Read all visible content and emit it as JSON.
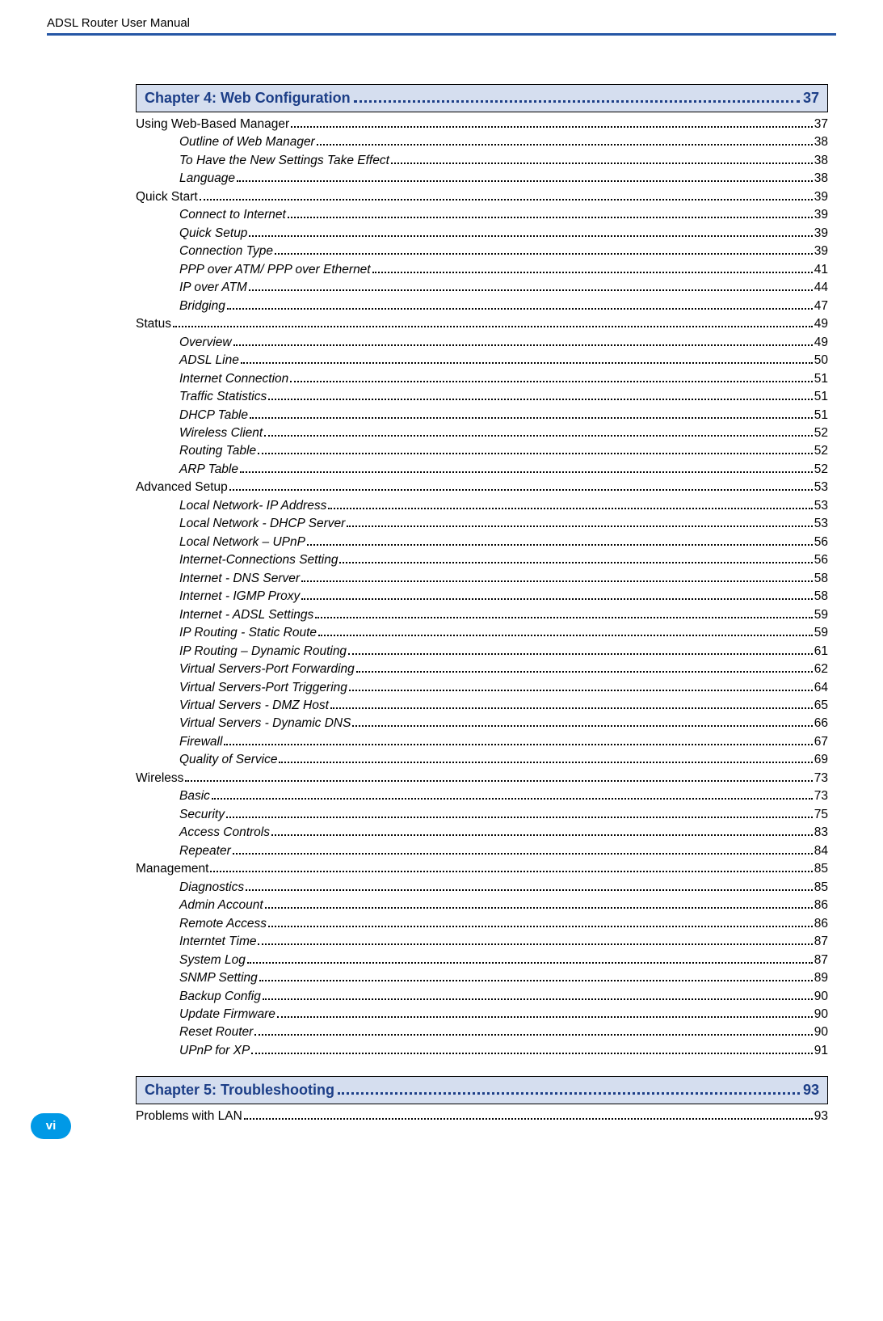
{
  "header": {
    "title": "ADSL Router User Manual"
  },
  "colors": {
    "rule": "#2657a5",
    "chapter_bg": "#d5deef",
    "chapter_text": "#1c3e87",
    "badge_bg": "#0099e6",
    "badge_text": "#ffffff",
    "body_text": "#000000"
  },
  "chapters": [
    {
      "title": "Chapter 4: Web Configuration",
      "page": "37",
      "toc": [
        {
          "level": 1,
          "label": "Using Web-Based Manager",
          "page": "37"
        },
        {
          "level": 2,
          "label": "Outline of Web Manager",
          "page": "38"
        },
        {
          "level": 2,
          "label": "To Have the New Settings Take Effect",
          "page": "38"
        },
        {
          "level": 2,
          "label": "Language",
          "page": "38"
        },
        {
          "level": 1,
          "label": "Quick Start",
          "page": "39"
        },
        {
          "level": 2,
          "label": "Connect to Internet",
          "page": "39"
        },
        {
          "level": 2,
          "label": "Quick Setup",
          "page": "39"
        },
        {
          "level": 2,
          "label": "Connection Type",
          "page": "39"
        },
        {
          "level": 2,
          "label": "PPP over ATM/ PPP over Ethernet",
          "page": "41"
        },
        {
          "level": 2,
          "label": "IP over ATM",
          "page": "44"
        },
        {
          "level": 2,
          "label": "Bridging",
          "page": "47"
        },
        {
          "level": 1,
          "label": "Status",
          "page": "49"
        },
        {
          "level": 2,
          "label": "Overview",
          "page": "49"
        },
        {
          "level": 2,
          "label": "ADSL Line",
          "page": "50"
        },
        {
          "level": 2,
          "label": "Internet Connection",
          "page": "51"
        },
        {
          "level": 2,
          "label": "Traffic Statistics",
          "page": "51"
        },
        {
          "level": 2,
          "label": "DHCP Table",
          "page": "51"
        },
        {
          "level": 2,
          "label": "Wireless Client",
          "page": "52"
        },
        {
          "level": 2,
          "label": "Routing Table",
          "page": "52"
        },
        {
          "level": 2,
          "label": "ARP Table",
          "page": "52"
        },
        {
          "level": 1,
          "label": "Advanced Setup",
          "page": "53"
        },
        {
          "level": 2,
          "label": "Local Network- IP Address",
          "page": "53"
        },
        {
          "level": 2,
          "label": "Local Network - DHCP Server",
          "page": "53"
        },
        {
          "level": 2,
          "label": "Local Network – UPnP",
          "page": "56"
        },
        {
          "level": 2,
          "label": "Internet-Connections Setting",
          "page": "56"
        },
        {
          "level": 2,
          "label": "Internet - DNS Server",
          "page": "58"
        },
        {
          "level": 2,
          "label": "Internet - IGMP Proxy",
          "page": "58"
        },
        {
          "level": 2,
          "label": "Internet - ADSL Settings",
          "page": "59"
        },
        {
          "level": 2,
          "label": "IP Routing - Static Route",
          "page": "59"
        },
        {
          "level": 2,
          "label": "IP Routing – Dynamic Routing",
          "page": "61"
        },
        {
          "level": 2,
          "label": "Virtual Servers-Port Forwarding",
          "page": "62"
        },
        {
          "level": 2,
          "label": "Virtual Servers-Port Triggering",
          "page": "64"
        },
        {
          "level": 2,
          "label": "Virtual Servers - DMZ Host",
          "page": "65"
        },
        {
          "level": 2,
          "label": "Virtual Servers - Dynamic DNS",
          "page": "66"
        },
        {
          "level": 2,
          "label": "Firewall",
          "page": "67"
        },
        {
          "level": 2,
          "label": "Quality of Service",
          "page": "69"
        },
        {
          "level": 1,
          "label": "Wireless",
          "page": "73"
        },
        {
          "level": 2,
          "label": "Basic",
          "page": "73"
        },
        {
          "level": 2,
          "label": "Security",
          "page": "75"
        },
        {
          "level": 2,
          "label": "Access Controls",
          "page": "83"
        },
        {
          "level": 2,
          "label": "Repeater",
          "page": "84"
        },
        {
          "level": 1,
          "label": "Management",
          "page": "85"
        },
        {
          "level": 2,
          "label": "Diagnostics",
          "page": "85"
        },
        {
          "level": 2,
          "label": "Admin Account",
          "page": "86"
        },
        {
          "level": 2,
          "label": "Remote Access",
          "page": "86"
        },
        {
          "level": 2,
          "label": "Interntet Time",
          "page": "87"
        },
        {
          "level": 2,
          "label": "System Log",
          "page": "87"
        },
        {
          "level": 2,
          "label": "SNMP Setting",
          "page": "89"
        },
        {
          "level": 2,
          "label": "Backup Config",
          "page": "90"
        },
        {
          "level": 2,
          "label": "Update Firmware",
          "page": "90"
        },
        {
          "level": 2,
          "label": "Reset Router",
          "page": "90"
        },
        {
          "level": 2,
          "label": "UPnP for XP",
          "page": "91"
        }
      ]
    },
    {
      "title": "Chapter 5: Troubleshooting",
      "page": "93",
      "toc": [
        {
          "level": 1,
          "label": "Problems with LAN",
          "page": "93"
        }
      ]
    }
  ],
  "footer_page": "vi"
}
